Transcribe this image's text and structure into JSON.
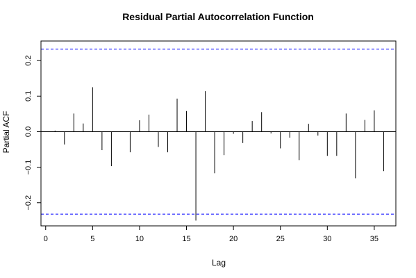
{
  "chart_data": {
    "type": "bar",
    "title": "Residual Partial Autocorrelation Function",
    "xlabel": "Lag",
    "ylabel": "Partial ACF",
    "xlim": [
      -0.5,
      37.3
    ],
    "ylim": [
      -0.265,
      0.255
    ],
    "xticks": [
      0,
      5,
      10,
      15,
      20,
      25,
      30,
      35
    ],
    "yticks": [
      -0.2,
      -0.1,
      0.0,
      0.1,
      0.2
    ],
    "ytick_labels": [
      "−0.2",
      "−0.1",
      "0.0",
      "0.1",
      "0.2"
    ],
    "grid": false,
    "confidence_bound": 0.232,
    "confidence_color": "#0000ff",
    "bar_color": "#000000",
    "lags": [
      1,
      2,
      3,
      4,
      5,
      6,
      7,
      8,
      9,
      10,
      11,
      12,
      13,
      14,
      15,
      16,
      17,
      18,
      19,
      20,
      21,
      22,
      23,
      24,
      25,
      26,
      27,
      28,
      29,
      30,
      31,
      32,
      33,
      34,
      35,
      36
    ],
    "values": [
      0.003,
      -0.036,
      0.051,
      0.023,
      0.125,
      -0.052,
      -0.097,
      0.001,
      -0.058,
      0.032,
      0.048,
      -0.043,
      -0.058,
      0.093,
      0.058,
      -0.25,
      0.114,
      -0.117,
      -0.066,
      -0.006,
      -0.032,
      0.03,
      0.055,
      -0.005,
      -0.047,
      -0.017,
      -0.08,
      0.022,
      -0.011,
      -0.068,
      -0.068,
      0.051,
      -0.131,
      0.033,
      0.06,
      -0.111
    ]
  }
}
